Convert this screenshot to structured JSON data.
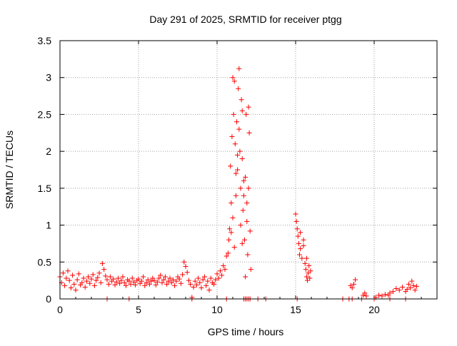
{
  "chart_data": {
    "type": "scatter",
    "title": "Day 291 of 2025, SRMTID for receiver ptgg",
    "xlabel": "GPS time / hours",
    "ylabel": "SRMTID / TECUs",
    "xlim": [
      0,
      24
    ],
    "ylim": [
      0,
      3.5
    ],
    "xticks": [
      {
        "value": 0,
        "label": "0"
      },
      {
        "value": 5,
        "label": "5"
      },
      {
        "value": 10,
        "label": "10"
      },
      {
        "value": 15,
        "label": "15"
      },
      {
        "value": 20,
        "label": "20"
      }
    ],
    "yticks": [
      {
        "value": 0,
        "label": "0"
      },
      {
        "value": 0.5,
        "label": "0.5"
      },
      {
        "value": 1,
        "label": "1"
      },
      {
        "value": 1.5,
        "label": "1.5"
      },
      {
        "value": 2,
        "label": "2"
      },
      {
        "value": 2.5,
        "label": "2.5"
      },
      {
        "value": 3,
        "label": "3"
      },
      {
        "value": 3.5,
        "label": "3.5"
      }
    ],
    "grid": true,
    "marker": "+",
    "series_color": "#ff0000",
    "series": [
      {
        "name": "SRMTID",
        "points": [
          [
            0.0,
            0.3
          ],
          [
            0.1,
            0.22
          ],
          [
            0.2,
            0.35
          ],
          [
            0.3,
            0.18
          ],
          [
            0.4,
            0.28
          ],
          [
            0.5,
            0.38
          ],
          [
            0.6,
            0.25
          ],
          [
            0.7,
            0.15
          ],
          [
            0.8,
            0.32
          ],
          [
            0.9,
            0.2
          ],
          [
            1.0,
            0.12
          ],
          [
            1.1,
            0.26
          ],
          [
            1.2,
            0.34
          ],
          [
            1.3,
            0.19
          ],
          [
            1.4,
            0.22
          ],
          [
            1.5,
            0.28
          ],
          [
            1.6,
            0.16
          ],
          [
            1.7,
            0.24
          ],
          [
            1.8,
            0.3
          ],
          [
            1.9,
            0.21
          ],
          [
            2.0,
            0.27
          ],
          [
            2.1,
            0.33
          ],
          [
            2.2,
            0.18
          ],
          [
            2.3,
            0.25
          ],
          [
            2.4,
            0.29
          ],
          [
            2.5,
            0.35
          ],
          [
            2.6,
            0.22
          ],
          [
            2.7,
            0.48
          ],
          [
            2.8,
            0.4
          ],
          [
            2.9,
            0.31
          ],
          [
            3.0,
            0.26
          ],
          [
            3.1,
            0.2
          ],
          [
            3.2,
            0.3
          ],
          [
            3.3,
            0.24
          ],
          [
            3.4,
            0.27
          ],
          [
            3.5,
            0.19
          ],
          [
            3.6,
            0.23
          ],
          [
            3.7,
            0.28
          ],
          [
            3.8,
            0.21
          ],
          [
            3.9,
            0.25
          ],
          [
            4.0,
            0.3
          ],
          [
            4.1,
            0.22
          ],
          [
            4.2,
            0.18
          ],
          [
            4.3,
            0.26
          ],
          [
            4.4,
            0.24
          ],
          [
            4.5,
            0.2
          ],
          [
            4.6,
            0.28
          ],
          [
            4.7,
            0.23
          ],
          [
            4.8,
            0.19
          ],
          [
            4.9,
            0.25
          ],
          [
            5.0,
            0.27
          ],
          [
            5.1,
            0.21
          ],
          [
            5.2,
            0.24
          ],
          [
            5.3,
            0.3
          ],
          [
            5.4,
            0.18
          ],
          [
            5.5,
            0.22
          ],
          [
            5.6,
            0.26
          ],
          [
            5.7,
            0.2
          ],
          [
            5.8,
            0.24
          ],
          [
            5.9,
            0.28
          ],
          [
            6.0,
            0.25
          ],
          [
            6.1,
            0.19
          ],
          [
            6.2,
            0.23
          ],
          [
            6.3,
            0.28
          ],
          [
            6.4,
            0.32
          ],
          [
            6.5,
            0.22
          ],
          [
            6.6,
            0.26
          ],
          [
            6.7,
            0.3
          ],
          [
            6.8,
            0.2
          ],
          [
            6.9,
            0.24
          ],
          [
            7.0,
            0.28
          ],
          [
            7.1,
            0.22
          ],
          [
            7.2,
            0.26
          ],
          [
            7.3,
            0.18
          ],
          [
            7.4,
            0.24
          ],
          [
            7.5,
            0.3
          ],
          [
            7.6,
            0.27
          ],
          [
            7.7,
            0.21
          ],
          [
            7.8,
            0.33
          ],
          [
            7.9,
            0.5
          ],
          [
            8.0,
            0.44
          ],
          [
            8.1,
            0.36
          ],
          [
            8.2,
            0.25
          ],
          [
            8.3,
            0.2
          ],
          [
            8.4,
            0.02
          ],
          [
            8.5,
            0.16
          ],
          [
            8.6,
            0.24
          ],
          [
            8.7,
            0.19
          ],
          [
            8.8,
            0.28
          ],
          [
            8.9,
            0.22
          ],
          [
            9.0,
            0.15
          ],
          [
            9.1,
            0.26
          ],
          [
            9.2,
            0.3
          ],
          [
            9.3,
            0.18
          ],
          [
            9.4,
            0.24
          ],
          [
            9.5,
            0.12
          ],
          [
            9.6,
            0.28
          ],
          [
            9.7,
            0.22
          ],
          [
            9.8,
            0.2
          ],
          [
            9.9,
            0.26
          ],
          [
            10.0,
            0.34
          ],
          [
            10.1,
            0.28
          ],
          [
            10.2,
            0.38
          ],
          [
            10.3,
            0.32
          ],
          [
            10.4,
            0.45
          ],
          [
            10.5,
            0.4
          ],
          [
            10.6,
            0.58
          ],
          [
            10.7,
            0.62
          ],
          [
            10.75,
            0.8
          ],
          [
            10.8,
            0.95
          ],
          [
            10.85,
            1.8
          ],
          [
            10.9,
            1.3
          ],
          [
            10.95,
            2.2
          ],
          [
            11.0,
            3.0
          ],
          [
            11.05,
            2.5
          ],
          [
            11.1,
            2.95
          ],
          [
            11.15,
            2.1
          ],
          [
            11.2,
            1.7
          ],
          [
            11.25,
            2.4
          ],
          [
            11.3,
            1.95
          ],
          [
            11.35,
            2.85
          ],
          [
            11.4,
            3.12
          ],
          [
            11.45,
            2.0
          ],
          [
            11.5,
            1.5
          ],
          [
            11.55,
            2.7
          ],
          [
            11.6,
            1.9
          ],
          [
            11.65,
            1.2
          ],
          [
            11.7,
            1.6
          ],
          [
            11.75,
            0.8
          ],
          [
            11.8,
            0.3
          ],
          [
            11.85,
            2.5
          ],
          [
            11.9,
            1.3
          ],
          [
            11.95,
            0.6
          ],
          [
            12.0,
            2.6
          ],
          [
            12.05,
            2.25
          ],
          [
            12.1,
            0.92
          ],
          [
            12.15,
            0.4
          ],
          [
            10.9,
            0.9
          ],
          [
            11.0,
            1.1
          ],
          [
            11.2,
            1.4
          ],
          [
            11.3,
            1.75
          ],
          [
            11.5,
            1.0
          ],
          [
            11.6,
            0.75
          ],
          [
            11.7,
            1.4
          ],
          [
            11.8,
            1.65
          ],
          [
            11.9,
            1.05
          ],
          [
            12.0,
            1.5
          ],
          [
            11.1,
            0.7
          ],
          [
            11.4,
            2.3
          ],
          [
            11.6,
            2.55
          ],
          [
            15.0,
            1.15
          ],
          [
            15.05,
            1.05
          ],
          [
            15.1,
            0.95
          ],
          [
            15.15,
            0.85
          ],
          [
            15.2,
            0.75
          ],
          [
            15.25,
            0.6
          ],
          [
            15.3,
            0.68
          ],
          [
            15.4,
            0.55
          ],
          [
            15.5,
            0.72
          ],
          [
            15.6,
            0.48
          ],
          [
            15.65,
            0.4
          ],
          [
            15.7,
            0.3
          ],
          [
            15.75,
            0.25
          ],
          [
            15.8,
            0.35
          ],
          [
            15.85,
            0.45
          ],
          [
            15.9,
            0.28
          ],
          [
            15.95,
            0.38
          ],
          [
            15.5,
            0.8
          ],
          [
            15.3,
            0.9
          ],
          [
            15.7,
            0.55
          ],
          [
            18.5,
            0.18
          ],
          [
            18.6,
            0.15
          ],
          [
            18.7,
            0.2
          ],
          [
            18.8,
            0.26
          ],
          [
            19.3,
            0.05
          ],
          [
            19.4,
            0.08
          ],
          [
            19.5,
            0.04
          ],
          [
            20.1,
            0.02
          ],
          [
            20.3,
            0.05
          ],
          [
            20.5,
            0.04
          ],
          [
            20.7,
            0.06
          ],
          [
            20.9,
            0.05
          ],
          [
            21.0,
            0.08
          ],
          [
            21.2,
            0.1
          ],
          [
            21.4,
            0.14
          ],
          [
            21.6,
            0.12
          ],
          [
            21.8,
            0.16
          ],
          [
            22.0,
            0.1
          ],
          [
            22.1,
            0.13
          ],
          [
            22.2,
            0.2
          ],
          [
            22.3,
            0.15
          ],
          [
            22.4,
            0.24
          ],
          [
            22.5,
            0.18
          ],
          [
            22.6,
            0.12
          ],
          [
            22.7,
            0.17
          ],
          [
            3.0,
            0.0
          ],
          [
            4.4,
            0.0
          ],
          [
            8.4,
            0.0
          ],
          [
            10.6,
            0.0
          ],
          [
            11.7,
            0.0
          ],
          [
            11.8,
            0.0
          ],
          [
            11.9,
            0.0
          ],
          [
            12.0,
            0.0
          ],
          [
            12.1,
            0.0
          ],
          [
            12.6,
            0.0
          ],
          [
            13.1,
            0.0
          ],
          [
            15.1,
            0.0
          ],
          [
            18.0,
            0.0
          ],
          [
            18.4,
            0.0
          ],
          [
            18.6,
            0.0
          ],
          [
            19.2,
            0.0
          ],
          [
            20.0,
            0.0
          ],
          [
            21.0,
            0.0
          ],
          [
            22.0,
            0.0
          ]
        ]
      }
    ]
  }
}
